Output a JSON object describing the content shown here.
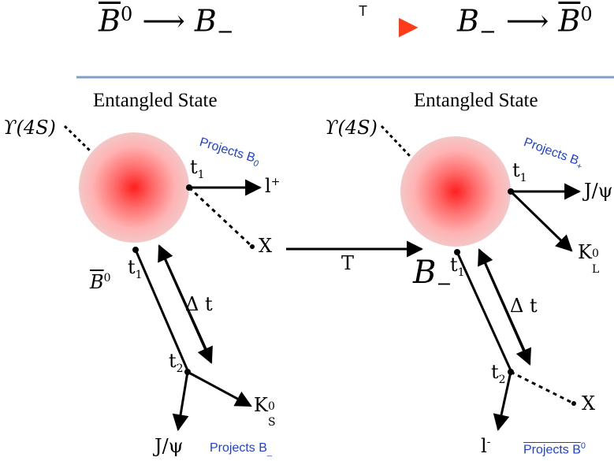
{
  "header": {
    "left_transition": {
      "from": "B",
      "from_sup": "0",
      "arrow": "⟶",
      "to": "B",
      "to_sub": "−"
    },
    "op": "T",
    "right_transition": {
      "from": "B",
      "from_sub": "−",
      "arrow": "⟶",
      "to": "B",
      "to_sup": "0"
    }
  },
  "left": {
    "title": "Entangled State",
    "upsilon": "ϒ(4S)",
    "projects_top": {
      "text": "Projects B",
      "sub": "0"
    },
    "t1_top": "t",
    "t1_top_sub": "1",
    "lepton": "l",
    "lepton_sup": "+",
    "x": "X",
    "b_label": "B",
    "b_label_sup": "0",
    "t1_bottom": "t",
    "t1_bottom_sub": "1",
    "delta_t": "Δ t",
    "t2": "t",
    "t2_sub": "2",
    "ks": "K",
    "ks_sup": "0",
    "ks_sub": "S",
    "jpsi": "J/ψ",
    "projects_bottom": {
      "text": "Projects B",
      "sub": "_"
    }
  },
  "middle": {
    "T": "T"
  },
  "right": {
    "title": "Entangled State",
    "upsilon": "ϒ(4S)",
    "projects_top": {
      "text": "Projects B",
      "sub": "+"
    },
    "t1_top": "t",
    "t1_top_sub": "1",
    "jpsi": "J/ψ",
    "kl": "K",
    "kl_sup": "0",
    "kl_sub": "L",
    "b_label": "B",
    "b_label_sub": "−",
    "t1_bottom": "t",
    "t1_bottom_sub": "1",
    "delta_t": "Δ t",
    "t2": "t",
    "t2_sub": "2",
    "x": "X",
    "lepton": "l",
    "lepton_sup": "-",
    "projects_bottom": {
      "text": "Projects B",
      "sup": "0"
    }
  },
  "colors": {
    "accent_blue": "#1f3fd9",
    "divider": "#7fa0c8",
    "sphere_center": "#ff2a2a",
    "arrow_red": "#e83a1a"
  }
}
